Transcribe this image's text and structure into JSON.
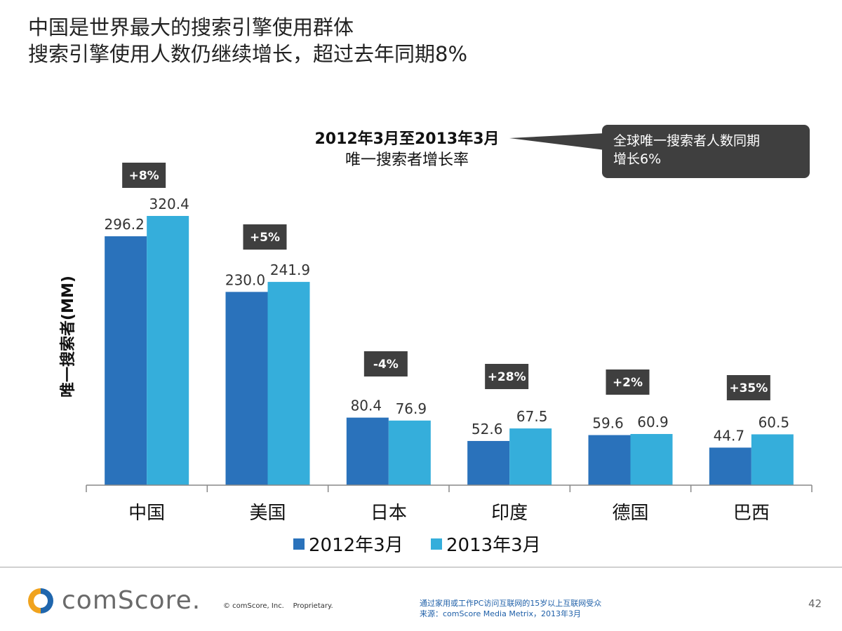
{
  "title": {
    "line1": "中国是世界最大的搜索引擎使用群体",
    "line2": "搜索引擎使用人数仍继续增长，超过去年同期8%"
  },
  "chart_heading": {
    "line1": "2012年3月至2013年3月",
    "line2": "唯一搜索者增长率"
  },
  "callout": {
    "line1": "全球唯一搜索者人数同期",
    "line2": "增长6%"
  },
  "chart_data": {
    "type": "bar",
    "title": "2012年3月至2013年3月 唯一搜索者增长率",
    "ylabel": "唯一搜索者(MM)",
    "xlabel": "",
    "categories": [
      "中国",
      "美国",
      "日本",
      "印度",
      "德国",
      "巴西"
    ],
    "series": [
      {
        "name": "2012年3月",
        "values": [
          296.2,
          230.0,
          80.4,
          52.6,
          59.6,
          44.7
        ],
        "labels": [
          "296.2",
          "230.0",
          "80.4",
          "52.6",
          "59.6",
          "44.7"
        ],
        "color": "#2a72bb"
      },
      {
        "name": "2013年3月",
        "values": [
          320.4,
          241.9,
          76.9,
          67.5,
          60.9,
          60.5
        ],
        "labels": [
          "320.4",
          "241.9",
          "76.9",
          "67.5",
          "60.9",
          "60.5"
        ],
        "color": "#35aedb"
      }
    ],
    "growth_labels": [
      "+8%",
      "+5%",
      "-4%",
      "+28%",
      "+2%",
      "+35%"
    ],
    "ylim": [
      0,
      320.4
    ],
    "grid": false,
    "legend_position": "bottom"
  },
  "colors": {
    "badge": "#3f3f3f",
    "series_2012": "#2a72bb",
    "series_2013": "#35aedb"
  },
  "footer": {
    "logo_text": "comScore.",
    "copyright": "© comScore, Inc.    Proprietary.",
    "source_line1": "通过家用或工作PC访问互联网的15岁以上互联网受众",
    "source_line2": "来源：comScore Media Metrix，2013年3月",
    "page_number": "42"
  }
}
